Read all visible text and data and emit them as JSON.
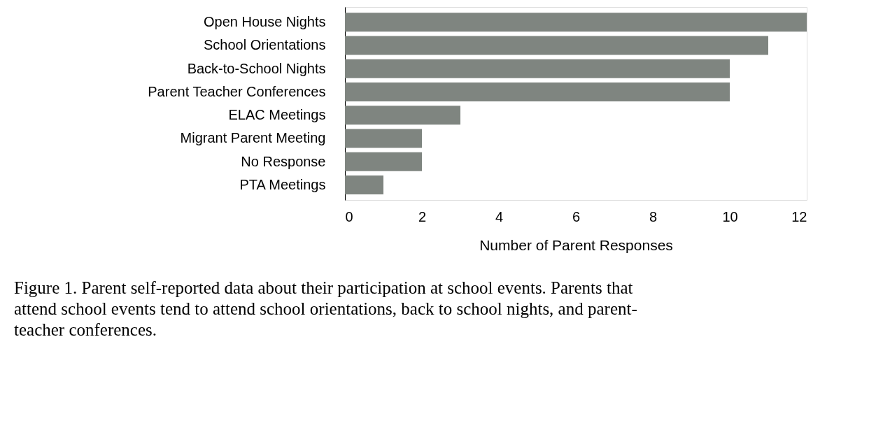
{
  "chart_data": {
    "type": "bar",
    "orientation": "horizontal",
    "xlabel": "Number of Parent Responses",
    "categories": [
      "Open House Nights",
      "School Orientations",
      "Back-to-School Nights",
      "Parent Teacher Conferences",
      "ELAC Meetings",
      "Migrant Parent Meeting",
      "No Response",
      "PTA Meetings"
    ],
    "values": [
      12,
      11,
      10,
      10,
      3,
      2,
      2,
      1
    ],
    "color": "#7f8580",
    "xlim": [
      0,
      12
    ],
    "xticks": [
      0,
      2,
      4,
      6,
      8,
      10,
      12
    ],
    "grid": false,
    "annotations": [
      "Figure 1. Parent self-reported data about their participation at school events. Parents that attend school events tend to attend school orientations, back to school nights, and parent-teacher conferences."
    ]
  }
}
